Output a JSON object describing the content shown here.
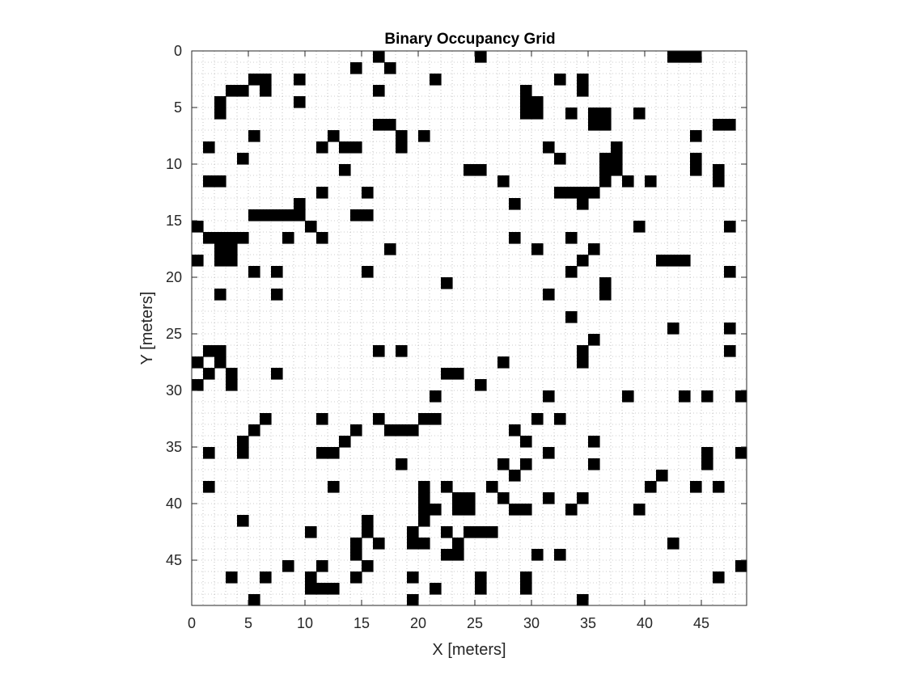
{
  "chart_data": {
    "type": "heatmap",
    "title": "Binary Occupancy Grid",
    "xlabel": "X [meters]",
    "ylabel": "Y [meters]",
    "xlim": [
      0,
      49
    ],
    "ylim": [
      0,
      49
    ],
    "y_axis_reversed": true,
    "grid": "dotted cell grid",
    "x_ticks": [
      0,
      5,
      10,
      15,
      20,
      25,
      30,
      35,
      40,
      45
    ],
    "x_tick_labels": [
      "0",
      "5",
      "10",
      "15",
      "20",
      "25",
      "30",
      "35",
      "40",
      "45"
    ],
    "y_ticks": [
      0,
      5,
      10,
      15,
      20,
      25,
      30,
      35,
      40,
      45
    ],
    "y_tick_labels": [
      "0",
      "5",
      "10",
      "15",
      "20",
      "25",
      "30",
      "35",
      "40",
      "45"
    ],
    "occupied_color": "#000000",
    "free_color": "#ffffff",
    "cell_size": 1,
    "occupied_cells": [
      [
        16,
        0
      ],
      [
        25,
        0
      ],
      [
        42,
        0
      ],
      [
        43,
        0
      ],
      [
        44,
        0
      ],
      [
        14,
        1
      ],
      [
        17,
        1
      ],
      [
        5,
        2
      ],
      [
        6,
        2
      ],
      [
        9,
        2
      ],
      [
        21,
        2
      ],
      [
        32,
        2
      ],
      [
        34,
        2
      ],
      [
        3,
        3
      ],
      [
        4,
        3
      ],
      [
        6,
        3
      ],
      [
        16,
        3
      ],
      [
        29,
        3
      ],
      [
        34,
        3
      ],
      [
        2,
        4
      ],
      [
        9,
        4
      ],
      [
        29,
        4
      ],
      [
        30,
        4
      ],
      [
        2,
        5
      ],
      [
        29,
        5
      ],
      [
        30,
        5
      ],
      [
        33,
        5
      ],
      [
        35,
        5
      ],
      [
        36,
        5
      ],
      [
        39,
        5
      ],
      [
        16,
        6
      ],
      [
        17,
        6
      ],
      [
        35,
        6
      ],
      [
        36,
        6
      ],
      [
        46,
        6
      ],
      [
        47,
        6
      ],
      [
        5,
        7
      ],
      [
        12,
        7
      ],
      [
        18,
        7
      ],
      [
        20,
        7
      ],
      [
        44,
        7
      ],
      [
        1,
        8
      ],
      [
        11,
        8
      ],
      [
        13,
        8
      ],
      [
        14,
        8
      ],
      [
        18,
        8
      ],
      [
        31,
        8
      ],
      [
        37,
        8
      ],
      [
        4,
        9
      ],
      [
        32,
        9
      ],
      [
        36,
        9
      ],
      [
        37,
        9
      ],
      [
        44,
        9
      ],
      [
        13,
        10
      ],
      [
        24,
        10
      ],
      [
        25,
        10
      ],
      [
        36,
        10
      ],
      [
        37,
        10
      ],
      [
        44,
        10
      ],
      [
        46,
        10
      ],
      [
        1,
        11
      ],
      [
        2,
        11
      ],
      [
        27,
        11
      ],
      [
        36,
        11
      ],
      [
        38,
        11
      ],
      [
        40,
        11
      ],
      [
        46,
        11
      ],
      [
        11,
        12
      ],
      [
        15,
        12
      ],
      [
        32,
        12
      ],
      [
        33,
        12
      ],
      [
        34,
        12
      ],
      [
        35,
        12
      ],
      [
        9,
        13
      ],
      [
        28,
        13
      ],
      [
        34,
        13
      ],
      [
        5,
        14
      ],
      [
        6,
        14
      ],
      [
        7,
        14
      ],
      [
        8,
        14
      ],
      [
        9,
        14
      ],
      [
        14,
        14
      ],
      [
        15,
        14
      ],
      [
        0,
        15
      ],
      [
        10,
        15
      ],
      [
        39,
        15
      ],
      [
        47,
        15
      ],
      [
        1,
        16
      ],
      [
        2,
        16
      ],
      [
        3,
        16
      ],
      [
        4,
        16
      ],
      [
        8,
        16
      ],
      [
        11,
        16
      ],
      [
        28,
        16
      ],
      [
        33,
        16
      ],
      [
        2,
        17
      ],
      [
        3,
        17
      ],
      [
        17,
        17
      ],
      [
        30,
        17
      ],
      [
        35,
        17
      ],
      [
        0,
        18
      ],
      [
        2,
        18
      ],
      [
        3,
        18
      ],
      [
        34,
        18
      ],
      [
        41,
        18
      ],
      [
        42,
        18
      ],
      [
        43,
        18
      ],
      [
        5,
        19
      ],
      [
        7,
        19
      ],
      [
        15,
        19
      ],
      [
        33,
        19
      ],
      [
        47,
        19
      ],
      [
        22,
        20
      ],
      [
        36,
        20
      ],
      [
        2,
        21
      ],
      [
        7,
        21
      ],
      [
        31,
        21
      ],
      [
        36,
        21
      ],
      [
        33,
        23
      ],
      [
        42,
        24
      ],
      [
        47,
        24
      ],
      [
        35,
        25
      ],
      [
        1,
        26
      ],
      [
        2,
        26
      ],
      [
        16,
        26
      ],
      [
        18,
        26
      ],
      [
        34,
        26
      ],
      [
        47,
        26
      ],
      [
        0,
        27
      ],
      [
        2,
        27
      ],
      [
        27,
        27
      ],
      [
        34,
        27
      ],
      [
        1,
        28
      ],
      [
        3,
        28
      ],
      [
        7,
        28
      ],
      [
        22,
        28
      ],
      [
        23,
        28
      ],
      [
        0,
        29
      ],
      [
        3,
        29
      ],
      [
        25,
        29
      ],
      [
        21,
        30
      ],
      [
        31,
        30
      ],
      [
        38,
        30
      ],
      [
        43,
        30
      ],
      [
        45,
        30
      ],
      [
        48,
        30
      ],
      [
        6,
        32
      ],
      [
        11,
        32
      ],
      [
        16,
        32
      ],
      [
        20,
        32
      ],
      [
        21,
        32
      ],
      [
        30,
        32
      ],
      [
        32,
        32
      ],
      [
        5,
        33
      ],
      [
        14,
        33
      ],
      [
        17,
        33
      ],
      [
        18,
        33
      ],
      [
        19,
        33
      ],
      [
        28,
        33
      ],
      [
        4,
        34
      ],
      [
        13,
        34
      ],
      [
        29,
        34
      ],
      [
        35,
        34
      ],
      [
        1,
        35
      ],
      [
        4,
        35
      ],
      [
        11,
        35
      ],
      [
        12,
        35
      ],
      [
        31,
        35
      ],
      [
        45,
        35
      ],
      [
        48,
        35
      ],
      [
        18,
        36
      ],
      [
        27,
        36
      ],
      [
        29,
        36
      ],
      [
        35,
        36
      ],
      [
        45,
        36
      ],
      [
        28,
        37
      ],
      [
        41,
        37
      ],
      [
        1,
        38
      ],
      [
        12,
        38
      ],
      [
        20,
        38
      ],
      [
        22,
        38
      ],
      [
        26,
        38
      ],
      [
        40,
        38
      ],
      [
        44,
        38
      ],
      [
        46,
        38
      ],
      [
        20,
        39
      ],
      [
        23,
        39
      ],
      [
        24,
        39
      ],
      [
        27,
        39
      ],
      [
        31,
        39
      ],
      [
        34,
        39
      ],
      [
        20,
        40
      ],
      [
        21,
        40
      ],
      [
        23,
        40
      ],
      [
        24,
        40
      ],
      [
        28,
        40
      ],
      [
        29,
        40
      ],
      [
        33,
        40
      ],
      [
        39,
        40
      ],
      [
        4,
        41
      ],
      [
        15,
        41
      ],
      [
        20,
        41
      ],
      [
        10,
        42
      ],
      [
        15,
        42
      ],
      [
        19,
        42
      ],
      [
        22,
        42
      ],
      [
        24,
        42
      ],
      [
        25,
        42
      ],
      [
        26,
        42
      ],
      [
        14,
        43
      ],
      [
        16,
        43
      ],
      [
        19,
        43
      ],
      [
        20,
        43
      ],
      [
        23,
        43
      ],
      [
        42,
        43
      ],
      [
        14,
        44
      ],
      [
        22,
        44
      ],
      [
        23,
        44
      ],
      [
        30,
        44
      ],
      [
        32,
        44
      ],
      [
        8,
        45
      ],
      [
        11,
        45
      ],
      [
        15,
        45
      ],
      [
        48,
        45
      ],
      [
        3,
        46
      ],
      [
        6,
        46
      ],
      [
        10,
        46
      ],
      [
        14,
        46
      ],
      [
        19,
        46
      ],
      [
        25,
        46
      ],
      [
        29,
        46
      ],
      [
        46,
        46
      ],
      [
        10,
        47
      ],
      [
        11,
        47
      ],
      [
        12,
        47
      ],
      [
        21,
        47
      ],
      [
        25,
        47
      ],
      [
        29,
        47
      ],
      [
        5,
        48
      ],
      [
        19,
        48
      ],
      [
        34,
        48
      ]
    ]
  }
}
